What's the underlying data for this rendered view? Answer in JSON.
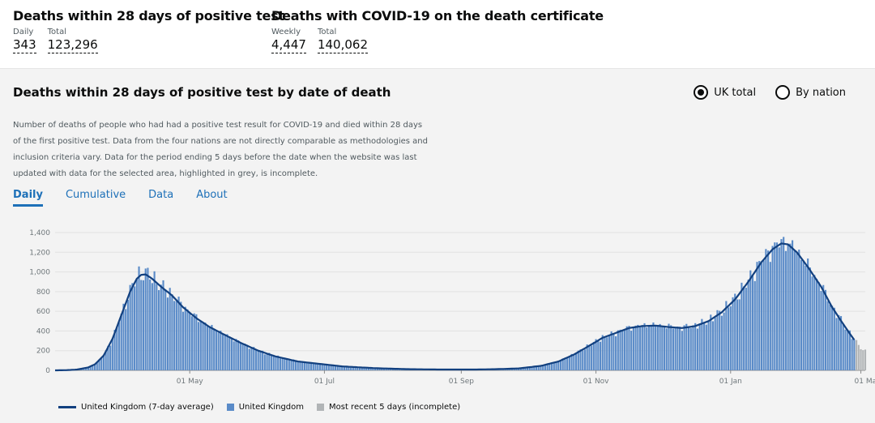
{
  "header": {
    "block1": {
      "title": "Deaths within 28 days of positive test",
      "daily_label": "Daily",
      "daily_value": "343",
      "total_label": "Total",
      "total_value": "123,296"
    },
    "block2": {
      "title": "Deaths with COVID-19 on the death certificate",
      "weekly_label": "Weekly",
      "weekly_value": "4,447",
      "total_label": "Total",
      "total_value": "140,062"
    }
  },
  "panel": {
    "title": "Deaths within 28 days of positive test by date of death",
    "radio_uk": "UK total",
    "radio_nation": "By nation",
    "description": "Number of deaths of people who had had a positive test result for COVID-19 and died within 28 days of the first positive test. Data from the four nations are not directly comparable as methodologies and inclusion criteria vary. Data for the period ending 5 days before the date when the website was last updated with data for the selected area, highlighted in grey, is incomplete.",
    "tabs": [
      "Daily",
      "Cumulative",
      "Data",
      "About"
    ]
  },
  "colors": {
    "bar": "#5a8bc8",
    "line": "#12407f",
    "incomplete": "#b1b4b6"
  },
  "chart_data": {
    "type": "bar",
    "title": "Deaths within 28 days of positive test by date of death",
    "ylim": [
      0,
      1400
    ],
    "yticks": [
      "0",
      "200",
      "400",
      "600",
      "800",
      "1,000",
      "1,200",
      "1,400"
    ],
    "xticks": [
      {
        "label": "01 May",
        "day": 61
      },
      {
        "label": "01 Jul",
        "day": 122
      },
      {
        "label": "01 Sep",
        "day": 184
      },
      {
        "label": "01 Nov",
        "day": 245
      },
      {
        "label": "01 Jan",
        "day": 306
      },
      {
        "label": "01 Ma",
        "day": 365
      }
    ],
    "x_range_days": [
      0,
      367
    ],
    "series": [
      {
        "name": "United Kingdom (7-day average)",
        "kind": "line"
      },
      {
        "name": "United Kingdom",
        "kind": "bar"
      },
      {
        "name": "Most recent 5 days (incomplete)",
        "kind": "bar"
      }
    ],
    "incomplete_days": 5,
    "keypoints": [
      [
        0,
        0
      ],
      [
        5,
        2
      ],
      [
        10,
        8
      ],
      [
        15,
        30
      ],
      [
        18,
        60
      ],
      [
        22,
        150
      ],
      [
        26,
        320
      ],
      [
        30,
        560
      ],
      [
        34,
        800
      ],
      [
        37,
        930
      ],
      [
        39,
        970
      ],
      [
        41,
        975
      ],
      [
        44,
        930
      ],
      [
        48,
        850
      ],
      [
        53,
        760
      ],
      [
        58,
        640
      ],
      [
        64,
        530
      ],
      [
        70,
        440
      ],
      [
        76,
        370
      ],
      [
        84,
        280
      ],
      [
        92,
        200
      ],
      [
        100,
        140
      ],
      [
        110,
        90
      ],
      [
        120,
        65
      ],
      [
        130,
        40
      ],
      [
        145,
        22
      ],
      [
        160,
        12
      ],
      [
        175,
        8
      ],
      [
        190,
        8
      ],
      [
        200,
        12
      ],
      [
        210,
        20
      ],
      [
        220,
        45
      ],
      [
        228,
        90
      ],
      [
        235,
        160
      ],
      [
        242,
        250
      ],
      [
        248,
        330
      ],
      [
        254,
        380
      ],
      [
        260,
        430
      ],
      [
        266,
        450
      ],
      [
        272,
        455
      ],
      [
        278,
        440
      ],
      [
        284,
        430
      ],
      [
        290,
        450
      ],
      [
        296,
        500
      ],
      [
        302,
        590
      ],
      [
        308,
        720
      ],
      [
        314,
        900
      ],
      [
        320,
        1100
      ],
      [
        325,
        1230
      ],
      [
        329,
        1290
      ],
      [
        332,
        1280
      ],
      [
        336,
        1200
      ],
      [
        341,
        1050
      ],
      [
        347,
        850
      ],
      [
        352,
        640
      ],
      [
        357,
        470
      ],
      [
        361,
        340
      ],
      [
        364,
        250
      ],
      [
        367,
        190
      ]
    ]
  },
  "legend": {
    "line": "United Kingdom (7-day average)",
    "bar": "United Kingdom",
    "incomplete": "Most recent 5 days (incomplete)"
  }
}
